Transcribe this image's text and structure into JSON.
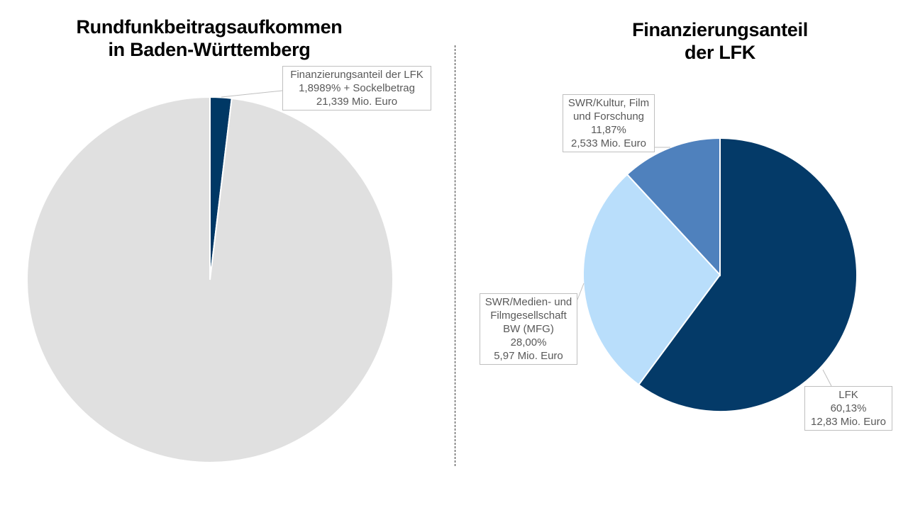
{
  "chart_data": [
    {
      "type": "pie",
      "title_lines": [
        "Rundfunkbeitragsaufkommen",
        "in Baden-Württemberg"
      ],
      "slices": [
        {
          "value": 1.8989,
          "color": "#003865",
          "label_lines": [
            "Finanzierungsanteil der LFK",
            "1,8989% + Sockelbetrag",
            "21,339 Mio. Euro"
          ]
        },
        {
          "value": 98.1011,
          "color": "#e0e0e0",
          "label_lines": []
        }
      ]
    },
    {
      "type": "pie",
      "title_lines": [
        "Finanzierungsanteil",
        "der LFK"
      ],
      "slices": [
        {
          "value": 60.13,
          "color": "#043a68",
          "label_lines": [
            "LFK",
            "60,13%",
            "12,83 Mio. Euro"
          ]
        },
        {
          "value": 28.0,
          "color": "#b9defb",
          "label_lines": [
            "SWR/Medien- und",
            "Filmgesellschaft",
            "BW (MFG)",
            "28,00%",
            "5,97 Mio. Euro"
          ]
        },
        {
          "value": 11.87,
          "color": "#4f81bd",
          "label_lines": [
            "SWR/Kultur, Film",
            "und Forschung",
            "11,87%",
            "2,533 Mio. Euro"
          ]
        }
      ]
    }
  ]
}
